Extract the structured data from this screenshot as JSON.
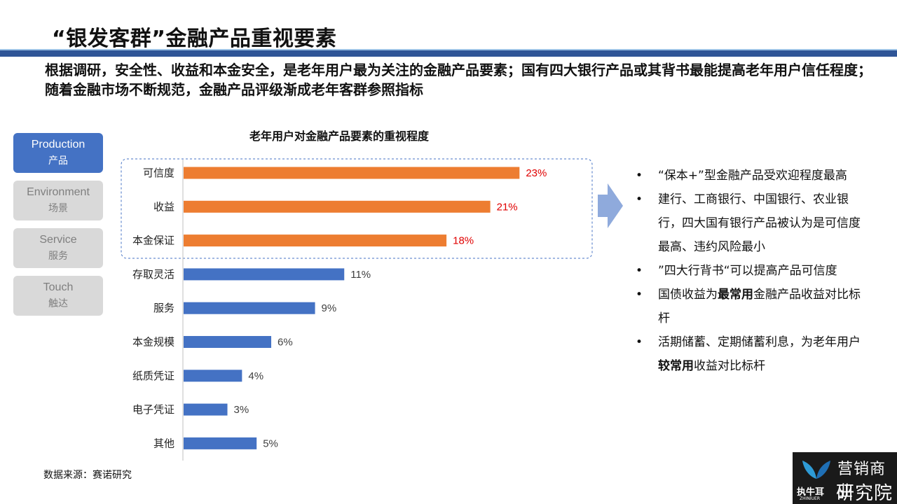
{
  "header": {
    "title": "“银发客群”金融产品重视要素",
    "subtitle": "根据调研，安全性、收益和本金安全，是老年用户最为关注的金融产品要素；国有四大银行产品或其背书最能提高老年用户信任程度；随着金融市场不断规范，金融产品评级渐成老年客群参照指标"
  },
  "nav": [
    {
      "en": "Production",
      "cn": "产品"
    },
    {
      "en": "Environment",
      "cn": "场景"
    },
    {
      "en": "Service",
      "cn": "服务"
    },
    {
      "en": "Touch",
      "cn": "触达"
    }
  ],
  "chart_data": {
    "type": "bar",
    "orientation": "horizontal",
    "title": "老年用户对金融产品要素的重视程度",
    "categories": [
      "可信度",
      "收益",
      "本金保证",
      "存取灵活",
      "服务",
      "本金规模",
      "纸质凭证",
      "电子凭证",
      "其他"
    ],
    "values": [
      23,
      21,
      18,
      11,
      9,
      6,
      4,
      3,
      5
    ],
    "labels": [
      "23%",
      "21%",
      "18%",
      "11%",
      "9%",
      "6%",
      "4%",
      "3%",
      "5%"
    ],
    "highlight_count": 3,
    "xlim": [
      0,
      25
    ],
    "colors": {
      "highlight": "#ed7d31",
      "normal": "#4472c4",
      "highlight_label": "#e00000",
      "normal_label": "#404040"
    }
  },
  "bullets": [
    {
      "pre": "“保本+”型金融产品受欢迎程度最高",
      "bold": "",
      "post": ""
    },
    {
      "pre": "建行、工商银行、中国银行、农业银行，四大国有银行产品被认为是可信度最高、违约风险最小",
      "bold": "",
      "post": ""
    },
    {
      "pre": "”四大行背书“可以提高产品可信度",
      "bold": "",
      "post": ""
    },
    {
      "pre": "国债收益为",
      "bold": "最常用",
      "post": "金融产品收益对比标杆"
    },
    {
      "pre": "活期储蓄、定期储蓄利息，为老年用户",
      "bold": "较常用",
      "post": "收益对比标杆"
    }
  ],
  "bullet_symbol": "•",
  "source": "数据来源：赛诺研究",
  "logo": {
    "line1": "营销商业",
    "line2": "研究院",
    "brand": "执牛耳",
    "brand_sub": "ZHINIUER"
  }
}
